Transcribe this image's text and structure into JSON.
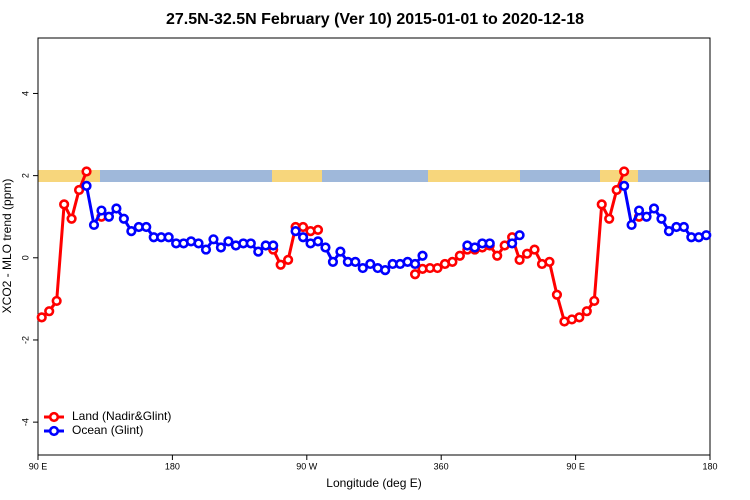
{
  "chart_data": {
    "type": "line",
    "title": "27.5N-32.5N February (Ver 10)   2015-01-01 to 2020-12-18",
    "x_label": "Longitude (deg E)",
    "y_label": "XCO2 - MLO trend (ppm)",
    "x": [
      92.5,
      97.5,
      102.5,
      107.5,
      112.5,
      117.5,
      122.5,
      127.5,
      132.5,
      137.5,
      142.5,
      147.5,
      152.5,
      157.5,
      162.5,
      167.5,
      172.5,
      177.5,
      182.5,
      187.5,
      192.5,
      197.5,
      202.5,
      207.5,
      212.5,
      217.5,
      222.5,
      227.5,
      232.5,
      237.5,
      242.5,
      247.5,
      252.5,
      257.5,
      262.5,
      267.5,
      272.5,
      277.5,
      282.5,
      287.5,
      292.5,
      297.5,
      302.5,
      307.5,
      312.5,
      317.5,
      322.5,
      327.5,
      332.5,
      337.5,
      342.5,
      347.5,
      352.5,
      357.5,
      362.5,
      367.5,
      372.5,
      377.5,
      382.5,
      387.5,
      392.5,
      397.5,
      402.5,
      407.5,
      412.5,
      417.5,
      422.5,
      427.5,
      432.5,
      437.5,
      442.5,
      447.5,
      452.5,
      457.5,
      462.5,
      467.5,
      472.5,
      477.5,
      482.5,
      487.5,
      492.5,
      497.5,
      502.5,
      507.5,
      512.5,
      517.5,
      522.5,
      527.5,
      532.5,
      537.5
    ],
    "series": [
      {
        "name": "Land (Nadir&Glint)",
        "color": "#ff0000",
        "values": [
          -1.45,
          -1.3,
          -1.05,
          1.3,
          0.95,
          1.65,
          2.1,
          null,
          1.0,
          null,
          null,
          null,
          null,
          null,
          null,
          null,
          null,
          null,
          null,
          null,
          null,
          null,
          null,
          null,
          null,
          null,
          null,
          null,
          null,
          null,
          null,
          0.2,
          -0.17,
          -0.05,
          0.75,
          0.75,
          0.65,
          0.68,
          null,
          null,
          null,
          null,
          null,
          null,
          null,
          null,
          null,
          null,
          null,
          null,
          -0.4,
          -0.27,
          -0.25,
          -0.25,
          -0.15,
          -0.1,
          0.05,
          0.2,
          0.2,
          0.25,
          0.3,
          0.05,
          0.3,
          0.5,
          -0.05,
          0.1,
          0.2,
          -0.15,
          -0.1,
          -0.9,
          -1.55,
          -1.5,
          -1.45,
          -1.3,
          -1.05,
          1.3,
          0.95,
          1.65,
          2.1,
          null,
          1.0,
          null,
          null,
          null,
          null,
          null,
          null,
          null,
          null,
          null
        ]
      },
      {
        "name": "Ocean (Glint)",
        "color": "#0000ff",
        "values": [
          null,
          null,
          null,
          null,
          null,
          null,
          1.75,
          0.8,
          1.15,
          1.0,
          1.2,
          0.95,
          0.65,
          0.75,
          0.75,
          0.5,
          0.5,
          0.5,
          0.35,
          0.35,
          0.4,
          0.35,
          0.2,
          0.45,
          0.25,
          0.4,
          0.3,
          0.35,
          0.35,
          0.15,
          0.3,
          0.3,
          null,
          null,
          0.65,
          0.5,
          0.35,
          0.4,
          0.25,
          -0.1,
          0.15,
          -0.1,
          -0.1,
          -0.25,
          -0.15,
          -0.25,
          -0.3,
          -0.15,
          -0.15,
          -0.1,
          -0.15,
          0.05,
          null,
          null,
          null,
          null,
          null,
          0.3,
          0.25,
          0.35,
          0.35,
          null,
          null,
          0.35,
          0.55,
          null,
          null,
          null,
          null,
          null,
          null,
          null,
          null,
          null,
          null,
          null,
          null,
          null,
          1.75,
          0.8,
          1.15,
          1.0,
          1.2,
          0.95,
          0.65,
          0.75,
          0.75,
          0.5,
          0.5,
          0.55
        ]
      }
    ],
    "xlim": [
      90,
      540
    ],
    "xticks": [
      {
        "value": 90,
        "label": "90 E"
      },
      180,
      {
        "value": 270,
        "label": "90 W"
      },
      360,
      {
        "value": 450,
        "label": "90 E"
      },
      {
        "value": 540,
        "label": "180"
      }
    ],
    "ylim": [
      -4.8,
      5.35
    ],
    "yticks": [
      -4,
      -2,
      0,
      2,
      4
    ],
    "legend": "bottomleft"
  }
}
